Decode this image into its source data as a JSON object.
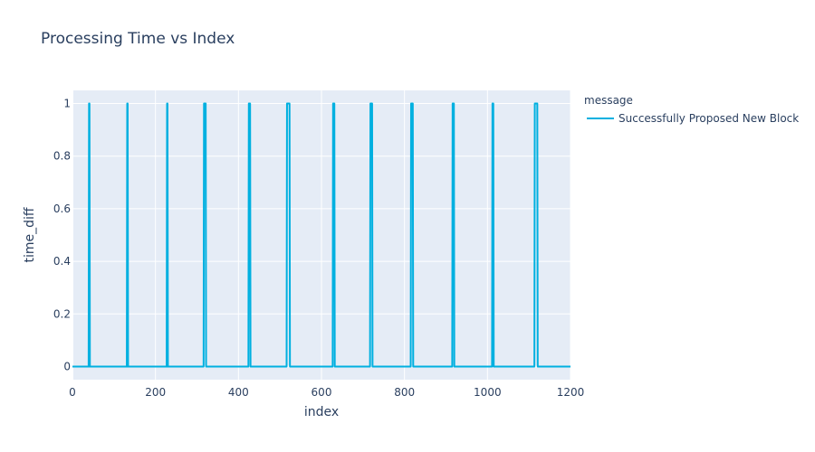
{
  "chart_data": {
    "type": "line",
    "title": "Processing Time vs Index",
    "xlabel": "index",
    "ylabel": "time_diff",
    "xlim": [
      0,
      1200
    ],
    "ylim": [
      -0.05,
      1.05
    ],
    "x_ticks": [
      0,
      200,
      400,
      600,
      800,
      1000,
      1200
    ],
    "x_tick_labels": [
      "0",
      "200",
      "400",
      "600",
      "800",
      "1000",
      "1200"
    ],
    "y_ticks": [
      0,
      0.2,
      0.4,
      0.6,
      0.8,
      1
    ],
    "y_tick_labels": [
      "0",
      "0.2",
      "0.4",
      "0.6",
      "0.8",
      "1"
    ],
    "grid": true,
    "legend": {
      "title": "message",
      "placement": "right"
    },
    "series": [
      {
        "name": "Successfully Proposed New Block",
        "color": "#00b0e0",
        "x": [
          0,
          39,
          40,
          41,
          42,
          131,
          132,
          133,
          134,
          227,
          228,
          229,
          230,
          316,
          317,
          321,
          322,
          424,
          425,
          428,
          429,
          516,
          517,
          523,
          524,
          627,
          628,
          631,
          632,
          717,
          718,
          722,
          723,
          815,
          816,
          820,
          821,
          915,
          916,
          919,
          920,
          1011,
          1012,
          1014,
          1015,
          1113,
          1114,
          1120,
          1121,
          1200
        ],
        "y": [
          0,
          0,
          1,
          1,
          0,
          0,
          1,
          1,
          0,
          0,
          1,
          1,
          0,
          0,
          1,
          1,
          0,
          0,
          1,
          1,
          0,
          0,
          1,
          1,
          0,
          0,
          1,
          1,
          0,
          0,
          1,
          1,
          0,
          0,
          1,
          1,
          0,
          0,
          1,
          1,
          0,
          0,
          1,
          1,
          0,
          0,
          1,
          1,
          0,
          0
        ]
      }
    ]
  }
}
